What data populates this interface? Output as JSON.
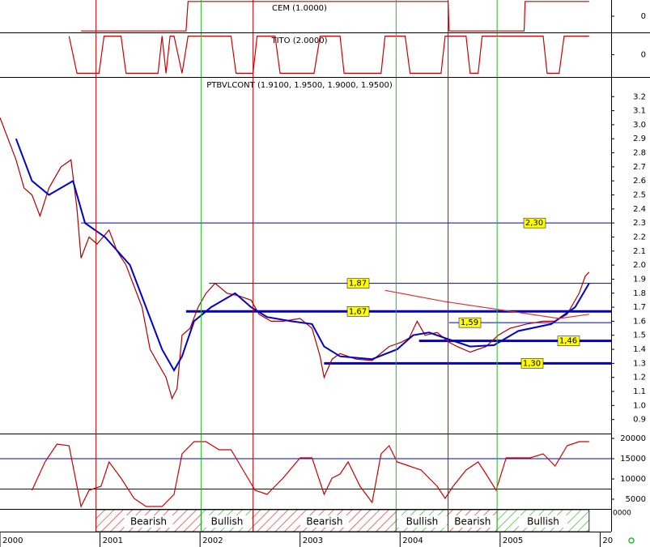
{
  "x_axis": {
    "xlim": [
      2000,
      2006.11
    ],
    "xticks": [
      2000,
      2001,
      2002,
      2003,
      2004,
      2005,
      {
        "value": 2006,
        "label": "20"
      }
    ]
  },
  "signals": [
    {
      "x": 2000.96,
      "color": "#cc0000"
    },
    {
      "x": 2002.01,
      "color": "#22bb22"
    },
    {
      "x": 2002.53,
      "color": "#cc0000"
    },
    {
      "x": 2003.96,
      "color": "#22bb22"
    },
    {
      "x": 2004.48,
      "color": "#cc0000"
    },
    {
      "x": 2004.97,
      "color": "#22bb22"
    }
  ],
  "phases": [
    {
      "label": "Bearish",
      "start": 2000.96,
      "end": 2002.01
    },
    {
      "label": "Bullish",
      "start": 2002.01,
      "end": 2002.53
    },
    {
      "label": "Bearish",
      "start": 2002.53,
      "end": 2003.96
    },
    {
      "label": "Bullish",
      "start": 2003.96,
      "end": 2004.48
    },
    {
      "label": "Bearish",
      "start": 2004.48,
      "end": 2004.97
    },
    {
      "label": "Bullish",
      "start": 2004.97,
      "end": 2005.89
    }
  ],
  "volume_label": "0000",
  "chart_data": [
    {
      "type": "line",
      "title": "CEM (1.0000)",
      "ylim": [
        -1.1,
        1.1
      ],
      "yticks": [
        0
      ],
      "series": [
        {
          "color": "#cc0000",
          "x": [
            2000.81,
            2001.86,
            2001.88,
            2004.48,
            2004.49,
            2005.24,
            2005.25,
            2005.89
          ],
          "values": [
            -1,
            -1,
            1,
            1,
            -1,
            -1,
            1,
            1
          ]
        }
      ]
    },
    {
      "type": "line",
      "title": "TITO (2.0000)",
      "ylim": [
        -1.2,
        1.2
      ],
      "yticks": [
        0
      ],
      "series": [
        {
          "color": "#cc0000",
          "x": [
            2000.69,
            2000.77,
            2000.99,
            2001.04,
            2001.21,
            2001.26,
            2001.58,
            2001.62,
            2001.66,
            2001.7,
            2001.74,
            2001.82,
            2001.88,
            2002.31,
            2002.36,
            2002.53,
            2002.57,
            2002.75,
            2002.8,
            2003.14,
            2003.2,
            2003.4,
            2003.44,
            2003.81,
            2003.85,
            2004.05,
            2004.1,
            2004.41,
            2004.45,
            2004.66,
            2004.7,
            2004.78,
            2004.82,
            2004.88,
            2004.94,
            2005.43,
            2005.47,
            2005.59,
            2005.64,
            2005.89
          ],
          "values": [
            1,
            -1,
            -1,
            1,
            1,
            -1,
            -1,
            1,
            -1,
            1,
            1,
            -1,
            1,
            1,
            -1,
            -1,
            1,
            1,
            -1,
            -1,
            1,
            1,
            -1,
            -1,
            1,
            1,
            -1,
            -1,
            1,
            1,
            -1,
            -1,
            1,
            1,
            1,
            1,
            -1,
            -1,
            1,
            1
          ]
        }
      ]
    },
    {
      "type": "line",
      "title": "PTBVLCONT (1.9100, 1.9500, 1.9000, 1.9500)",
      "ylim": [
        0.8,
        3.34
      ],
      "yticks": [
        {
          "value": 0.9,
          "label": "0.9"
        },
        {
          "value": 1,
          "label": "1.0"
        },
        1.1,
        1.2,
        1.3,
        1.4,
        1.5,
        1.6,
        1.7,
        1.8,
        1.9,
        {
          "value": 2,
          "label": "2.0"
        },
        2.1,
        2.2,
        2.3,
        2.4,
        2.5,
        2.6,
        2.7,
        2.8,
        2.9,
        {
          "value": 3,
          "label": "3.0"
        },
        3.1,
        3.2
      ],
      "series": [
        {
          "color": "#b00000",
          "x": [
            2000.0,
            2000.08,
            2000.16,
            2000.24,
            2000.32,
            2000.4,
            2000.49,
            2000.61,
            2000.71,
            2000.77,
            2000.81,
            2000.89,
            2000.97,
            2001.09,
            2001.17,
            2001.26,
            2001.34,
            2001.42,
            2001.5,
            2001.58,
            2001.66,
            2001.72,
            2001.77,
            2001.82,
            2001.9,
            2001.98,
            2002.06,
            2002.15,
            2002.27,
            2002.39,
            2002.51,
            2002.59,
            2002.71,
            2002.83,
            2003.0,
            2003.12,
            2003.2,
            2003.24,
            2003.32,
            2003.4,
            2003.56,
            2003.72,
            2003.89,
            2004.01,
            2004.09,
            2004.17,
            2004.25,
            2004.37,
            2004.49,
            2004.57,
            2004.7,
            2004.86,
            2004.98,
            2005.1,
            2005.26,
            2005.43,
            2005.55,
            2005.67,
            2005.79,
            2005.85,
            2005.89
          ],
          "values": [
            3.05,
            2.9,
            2.75,
            2.55,
            2.5,
            2.35,
            2.55,
            2.7,
            2.75,
            2.4,
            2.05,
            2.2,
            2.15,
            2.25,
            2.1,
            2.0,
            1.85,
            1.7,
            1.4,
            1.3,
            1.2,
            1.05,
            1.12,
            1.5,
            1.55,
            1.7,
            1.8,
            1.87,
            1.8,
            1.78,
            1.75,
            1.65,
            1.6,
            1.6,
            1.62,
            1.55,
            1.35,
            1.2,
            1.33,
            1.37,
            1.33,
            1.32,
            1.42,
            1.45,
            1.48,
            1.6,
            1.5,
            1.52,
            1.45,
            1.42,
            1.38,
            1.42,
            1.5,
            1.55,
            1.58,
            1.6,
            1.6,
            1.65,
            1.8,
            1.92,
            1.95
          ]
        },
        {
          "color": "#0000cc",
          "x": [
            2000.16,
            2000.32,
            2000.49,
            2000.73,
            2000.85,
            2001.05,
            2001.3,
            2001.46,
            2001.62,
            2001.74,
            2001.82,
            2001.94,
            2002.11,
            2002.35,
            2002.51,
            2002.67,
            2002.91,
            2003.12,
            2003.24,
            2003.4,
            2003.72,
            2003.97,
            2004.13,
            2004.29,
            2004.45,
            2004.7,
            2004.94,
            2005.18,
            2005.51,
            2005.75,
            2005.89
          ],
          "values": [
            2.9,
            2.6,
            2.5,
            2.6,
            2.3,
            2.2,
            2.0,
            1.7,
            1.4,
            1.25,
            1.35,
            1.6,
            1.7,
            1.8,
            1.7,
            1.63,
            1.6,
            1.58,
            1.42,
            1.35,
            1.33,
            1.4,
            1.5,
            1.52,
            1.48,
            1.42,
            1.43,
            1.53,
            1.58,
            1.7,
            1.87
          ]
        },
        {
          "color": "#dd3333",
          "x": [
            2003.85,
            2004.45,
            2005.02,
            2005.59,
            2005.89
          ],
          "values": [
            1.82,
            1.74,
            1.68,
            1.62,
            1.65
          ]
        }
      ],
      "levels": [
        {
          "value": 2.3,
          "label": "2,30",
          "start": 2000.81,
          "thick": false
        },
        {
          "value": 1.87,
          "label": "1,87",
          "start": 2002.09,
          "thick": false
        },
        {
          "value": 1.67,
          "label": "1,67",
          "start": 2001.86,
          "thick": true
        },
        {
          "value": 1.59,
          "label": "1,59",
          "start": 2004.49,
          "thick": false
        },
        {
          "value": 1.46,
          "label": "1,46",
          "start": 2004.19,
          "thick": true
        },
        {
          "value": 1.3,
          "label": "1,30",
          "start": 2003.24,
          "thick": true
        }
      ]
    },
    {
      "type": "line",
      "ylim": [
        2600,
        21200
      ],
      "yticks": [
        5000,
        10000,
        15000,
        20000
      ],
      "levels": [
        15000,
        7500
      ],
      "series": [
        {
          "color": "#cc0000",
          "x": [
            2000.32,
            2000.45,
            2000.57,
            2000.69,
            2000.77,
            2000.81,
            2000.89,
            2001.01,
            2001.09,
            2001.21,
            2001.34,
            2001.46,
            2001.62,
            2001.74,
            2001.82,
            2001.94,
            2002.06,
            2002.19,
            2002.31,
            2002.43,
            2002.55,
            2002.67,
            2002.83,
            2003.0,
            2003.12,
            2003.24,
            2003.32,
            2003.4,
            2003.48,
            2003.6,
            2003.72,
            2003.81,
            2003.89,
            2003.97,
            2004.09,
            2004.21,
            2004.37,
            2004.45,
            2004.53,
            2004.66,
            2004.78,
            2004.86,
            2004.96,
            2005.06,
            2005.18,
            2005.3,
            2005.43,
            2005.55,
            2005.67,
            2005.79,
            2005.89
          ],
          "values": [
            7200,
            14200,
            18600,
            18200,
            8200,
            3200,
            7200,
            8200,
            14200,
            10200,
            5200,
            3200,
            3200,
            6200,
            16200,
            19200,
            19200,
            17200,
            17200,
            12200,
            7200,
            6200,
            10200,
            15200,
            15200,
            6200,
            10200,
            11200,
            14200,
            8200,
            4200,
            16200,
            18200,
            14200,
            13200,
            12200,
            8200,
            5200,
            8200,
            12200,
            14200,
            11200,
            7200,
            15200,
            15200,
            15200,
            16200,
            13200,
            18200,
            19200,
            19200
          ]
        }
      ]
    }
  ]
}
